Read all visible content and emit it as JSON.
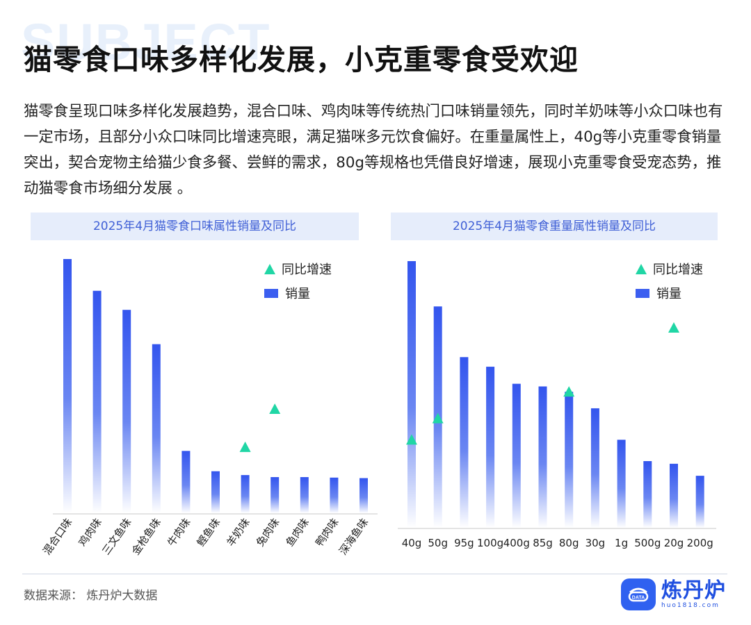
{
  "background_word": "SUBJECT",
  "title": "猫零食口味多样化发展，小克重零食受欢迎",
  "description": "猫零食呈现口味多样化发展趋势，混合口味、鸡肉味等传统热门口味销量领先，同时羊奶味等小众口味也有一定市场，且部分小众口味同比增速亮眼，满足猫咪多元饮食偏好。在重量属性上，40g等小克重零食销量突出，契合宠物主给猫少食多餐、尝鲜的需求，80g等规格也凭借良好增速，展现小克重零食受宠态势，推动猫零食市场细分发展 。",
  "legend": {
    "growth_label": "同比增速",
    "sales_label": "销量"
  },
  "colors": {
    "bar": "#3b5ef0",
    "triangle": "#20d6a5",
    "header_bg": "#e6edfb",
    "header_text": "#3f5fd6"
  },
  "chart_data": [
    {
      "type": "bar",
      "title": "2025年4月猫零食口味属性销量及同比",
      "categories": [
        "混合口味",
        "鸡肉味",
        "三文鱼味",
        "金枪鱼味",
        "牛肉味",
        "鲣鱼味",
        "羊奶味",
        "兔肉味",
        "鱼肉味",
        "鸭肉味",
        "深海鱼味"
      ],
      "series": [
        {
          "name": "销量",
          "values": [
            100,
            87.5,
            80,
            66.5,
            24.5,
            16.5,
            15,
            14.2,
            14.2,
            14,
            13.8
          ]
        },
        {
          "name": "同比增速",
          "marker": "triangle",
          "values": [
            null,
            null,
            null,
            null,
            null,
            null,
            26,
            41,
            null,
            null,
            null
          ]
        }
      ],
      "ylim": [
        0,
        100
      ]
    },
    {
      "type": "bar",
      "title": "2025年4月猫零食重量属性销量及同比",
      "categories": [
        "40g",
        "50g",
        "95g",
        "100g",
        "400g",
        "85g",
        "80g",
        "30g",
        "1g",
        "500g",
        "20g",
        "200g"
      ],
      "series": [
        {
          "name": "销量",
          "values": [
            100,
            83,
            64,
            60.4,
            54,
            53,
            51,
            44.8,
            33,
            25,
            24,
            19.5
          ]
        },
        {
          "name": "同比增速",
          "marker": "triangle",
          "values": [
            33,
            41,
            null,
            null,
            null,
            null,
            51,
            null,
            null,
            null,
            75,
            null
          ]
        }
      ],
      "ylim": [
        0,
        100
      ]
    }
  ],
  "source": "数据来源：  炼丹炉大数据",
  "logo": {
    "name": "炼丹炉",
    "url": "huo1818.com",
    "badge": "DATA"
  }
}
